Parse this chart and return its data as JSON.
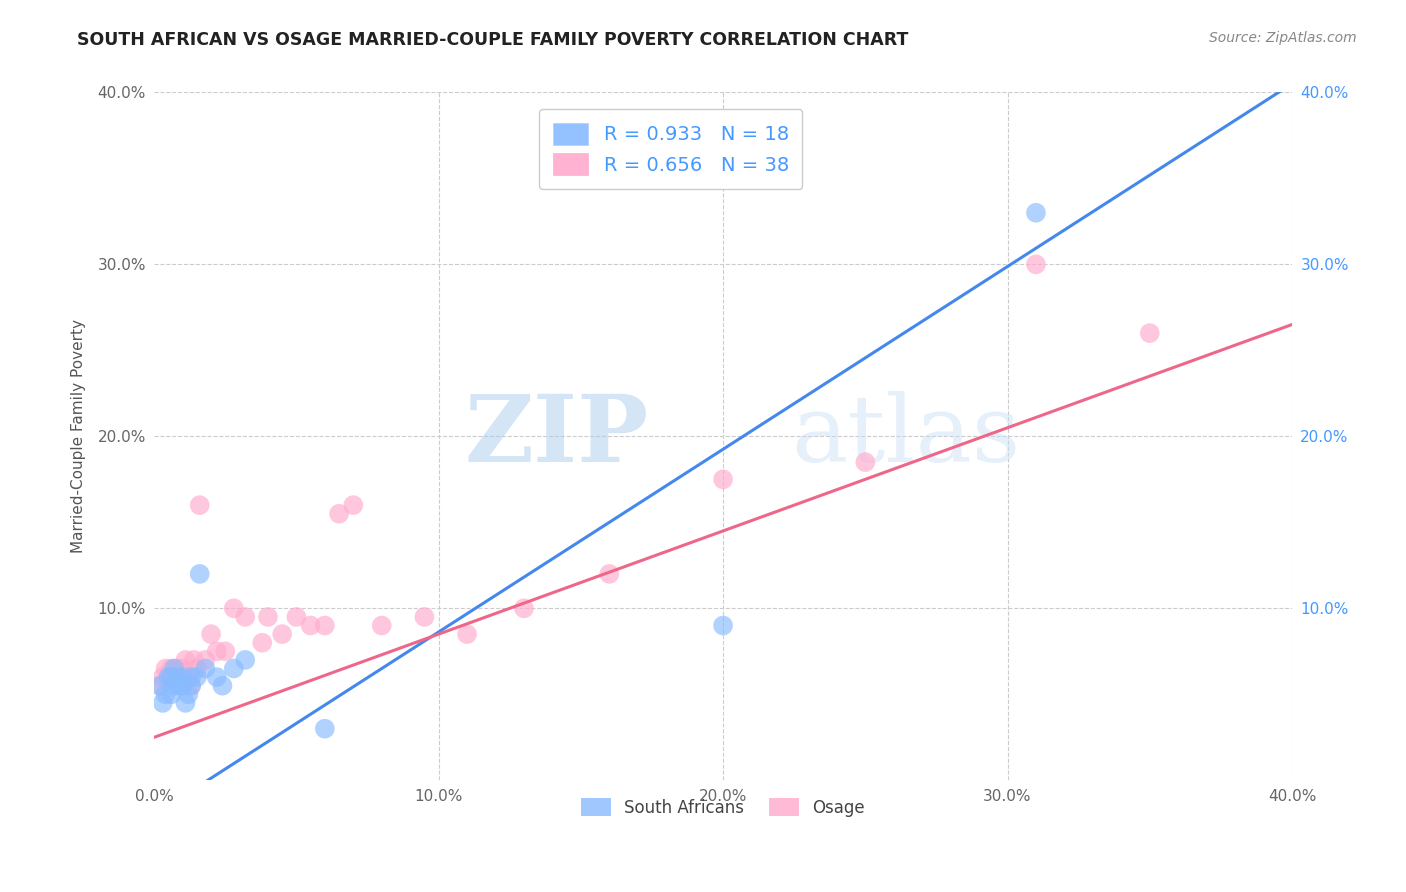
{
  "title": "SOUTH AFRICAN VS OSAGE MARRIED-COUPLE FAMILY POVERTY CORRELATION CHART",
  "source": "Source: ZipAtlas.com",
  "ylabel": "Married-Couple Family Poverty",
  "xlim": [
    0.0,
    0.4
  ],
  "ylim": [
    0.0,
    0.4
  ],
  "xtick_labels": [
    "0.0%",
    "",
    "10.0%",
    "",
    "20.0%",
    "",
    "30.0%",
    "",
    "40.0%"
  ],
  "xtick_vals": [
    0.0,
    0.05,
    0.1,
    0.15,
    0.2,
    0.25,
    0.3,
    0.35,
    0.4
  ],
  "ytick_labels": [
    "10.0%",
    "20.0%",
    "30.0%",
    "40.0%"
  ],
  "ytick_vals": [
    0.1,
    0.2,
    0.3,
    0.4
  ],
  "legend_color": "#4499ff",
  "blue_scatter_color": "#88bbff",
  "pink_scatter_color": "#ffaacc",
  "blue_line_color": "#4488ee",
  "pink_line_color": "#ee6688",
  "background_color": "#ffffff",
  "grid_color": "#cccccc",
  "watermark_zip": "ZIP",
  "watermark_atlas": "atlas",
  "blue_line_x": [
    0.0,
    0.4
  ],
  "blue_line_y": [
    -0.02,
    0.405
  ],
  "pink_line_x": [
    0.0,
    0.4
  ],
  "pink_line_y": [
    0.025,
    0.265
  ],
  "south_africans_x": [
    0.002,
    0.003,
    0.004,
    0.005,
    0.006,
    0.006,
    0.007,
    0.007,
    0.008,
    0.009,
    0.01,
    0.01,
    0.011,
    0.012,
    0.013,
    0.013,
    0.015,
    0.016,
    0.018,
    0.022,
    0.024,
    0.028,
    0.032,
    0.06,
    0.2,
    0.31
  ],
  "south_africans_y": [
    0.055,
    0.045,
    0.05,
    0.06,
    0.05,
    0.06,
    0.055,
    0.065,
    0.06,
    0.055,
    0.06,
    0.055,
    0.045,
    0.05,
    0.055,
    0.06,
    0.06,
    0.12,
    0.065,
    0.06,
    0.055,
    0.065,
    0.07,
    0.03,
    0.09,
    0.33
  ],
  "osage_x": [
    0.002,
    0.003,
    0.004,
    0.005,
    0.006,
    0.007,
    0.008,
    0.009,
    0.01,
    0.011,
    0.012,
    0.013,
    0.014,
    0.015,
    0.016,
    0.018,
    0.02,
    0.022,
    0.025,
    0.028,
    0.032,
    0.038,
    0.04,
    0.045,
    0.05,
    0.055,
    0.06,
    0.065,
    0.07,
    0.08,
    0.095,
    0.11,
    0.13,
    0.16,
    0.2,
    0.25,
    0.31,
    0.35
  ],
  "osage_y": [
    0.055,
    0.06,
    0.065,
    0.06,
    0.065,
    0.06,
    0.065,
    0.06,
    0.065,
    0.07,
    0.06,
    0.055,
    0.07,
    0.065,
    0.16,
    0.07,
    0.085,
    0.075,
    0.075,
    0.1,
    0.095,
    0.08,
    0.095,
    0.085,
    0.095,
    0.09,
    0.09,
    0.155,
    0.16,
    0.09,
    0.095,
    0.085,
    0.1,
    0.12,
    0.175,
    0.185,
    0.3,
    0.26
  ]
}
